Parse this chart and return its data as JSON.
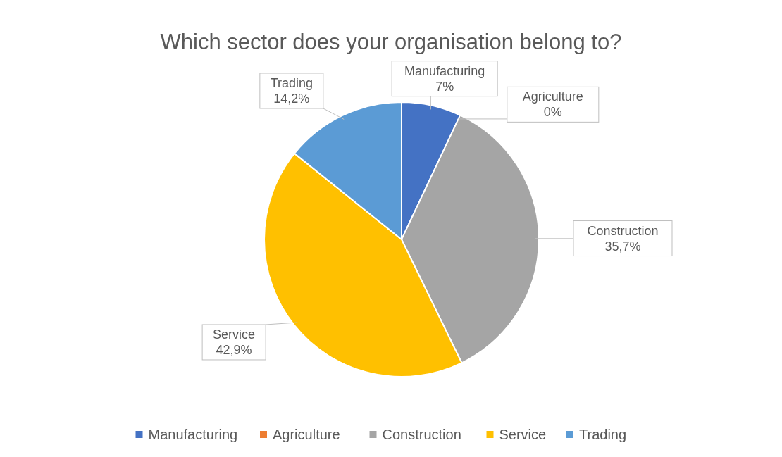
{
  "chart_data": {
    "type": "pie",
    "title": "Which sector does your organisation belong to?",
    "categories": [
      "Manufacturing",
      "Agriculture",
      "Construction",
      "Service",
      "Trading"
    ],
    "values": [
      7,
      0,
      35.7,
      42.9,
      14.2
    ],
    "value_labels": [
      "7%",
      "0%",
      "35,7%",
      "42,9%",
      "14,2%"
    ],
    "colors": [
      "#4472c4",
      "#ed7d31",
      "#a5a5a5",
      "#ffc000",
      "#5b9bd5"
    ],
    "legend": "bottom"
  }
}
